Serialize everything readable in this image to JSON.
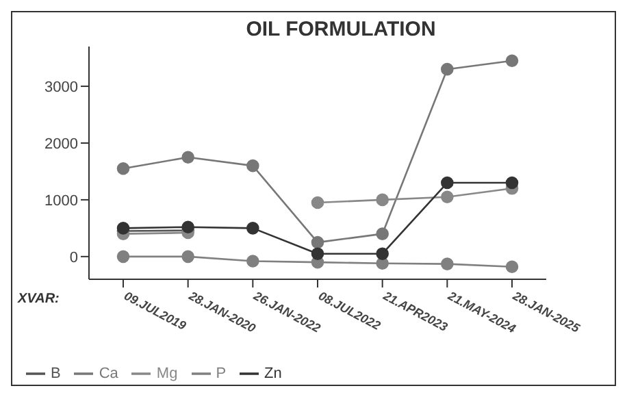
{
  "chart_data": {
    "type": "line",
    "title": "OIL FORMULATION",
    "xlabel": "XVAR:",
    "categories": [
      "09.JUL2019",
      "28.JAN-2020",
      "26.JAN-2022",
      "08.JUL2022",
      "21.APR2023",
      "21.MAY-2024",
      "28.JAN-2025"
    ],
    "series": [
      {
        "name": "B",
        "color": "#555555",
        "values": [
          450,
          460,
          null,
          null,
          null,
          null,
          null
        ]
      },
      {
        "name": "Ca",
        "color": "#777777",
        "values": [
          1550,
          1750,
          1600,
          250,
          400,
          3300,
          3450
        ]
      },
      {
        "name": "Mg",
        "color": "#888888",
        "values": [
          400,
          420,
          null,
          950,
          1000,
          1050,
          1200
        ]
      },
      {
        "name": "P",
        "color": "#808080",
        "values": [
          0,
          0,
          -80,
          -100,
          -120,
          -130,
          -180
        ]
      },
      {
        "name": "Zn",
        "color": "#333333",
        "values": [
          500,
          520,
          500,
          50,
          50,
          1300,
          1300
        ]
      }
    ],
    "ylim": [
      -400,
      3700
    ],
    "yticks": [
      0,
      1000,
      2000,
      3000
    ],
    "marker": "circle",
    "line_style": "solid",
    "grid": false,
    "legend": "bottom"
  }
}
